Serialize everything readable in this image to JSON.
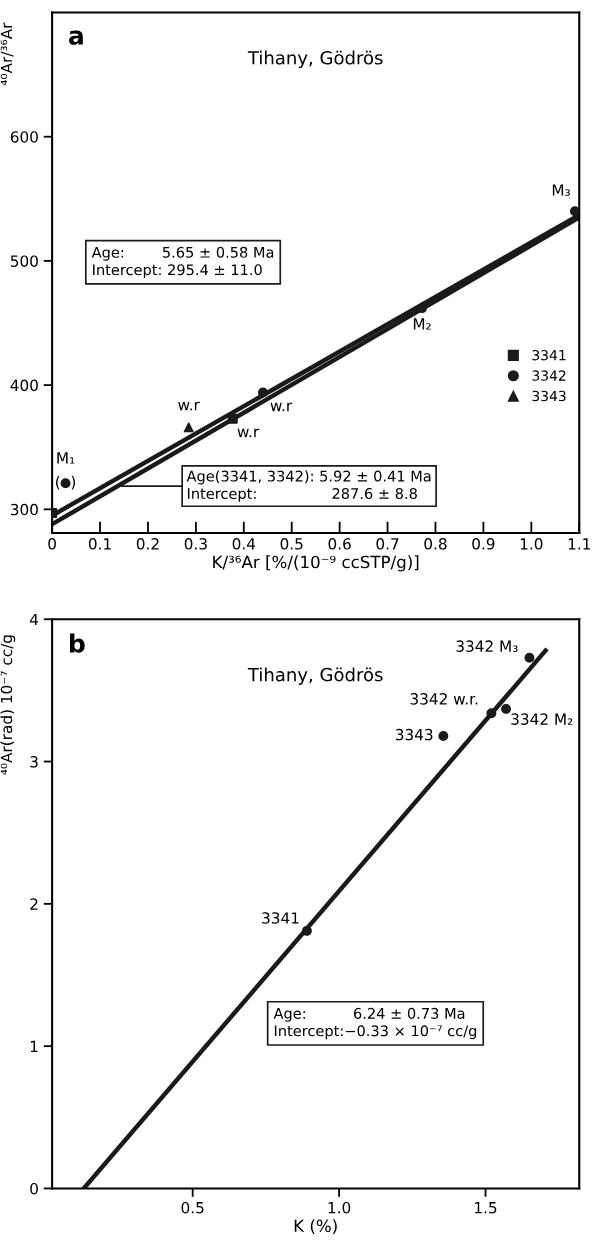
{
  "chart_data": [
    {
      "type": "scatter",
      "title": "Tihany, Gödrös",
      "xlabel": "K/³⁶Ar [%/(10⁻⁹ ccSTP/g)]",
      "ylabel": "⁴⁰Ar/³⁶Ar",
      "xlim": [
        0,
        1.1
      ],
      "ylim": [
        281,
        700
      ],
      "xticks": [
        0,
        {
          "value": 0.1,
          "label": "0.1"
        },
        {
          "value": 0.2,
          "label": "0.2"
        },
        {
          "value": 0.3,
          "label": "0.3"
        },
        {
          "value": 0.4,
          "label": "0.4"
        },
        {
          "value": 0.5,
          "label": "0.5"
        },
        {
          "value": 0.6,
          "label": "0.6"
        },
        {
          "value": 0.7,
          "label": "0.7"
        },
        {
          "value": 0.8,
          "label": "0.8"
        },
        {
          "value": 0.9,
          "label": "0.9"
        },
        {
          "value": 1.0,
          "label": "1.0"
        },
        {
          "value": 1.1,
          "label": "1.1"
        }
      ],
      "yticks": [
        300,
        400,
        500,
        600
      ],
      "grid": false,
      "legend": "right",
      "series": [
        {
          "type": "line",
          "color": "#1a1a1a",
          "x": [
            0,
            1.1
          ],
          "values": [
            295,
            537
          ],
          "marker": "none"
        },
        {
          "type": "line",
          "color": "#1a1a1a",
          "x": [
            0,
            1.1
          ],
          "values": [
            288,
            535
          ],
          "marker": "none"
        },
        {
          "name": "3341",
          "color": "#1a1a1a",
          "marker": "square",
          "x": [
            0,
            0.377
          ],
          "values": [
            297,
            373
          ]
        },
        {
          "name": "3342",
          "color": "#1a1a1a",
          "marker": "circle",
          "x": [
            0.028,
            0.44,
            0.772,
            1.091
          ],
          "values": [
            321,
            394,
            462,
            540
          ]
        },
        {
          "name": "3343",
          "color": "#1a1a1a",
          "marker": "triangle",
          "x": [
            0.285
          ],
          "values": [
            366
          ]
        }
      ],
      "annotations": [
        "a",
        "Age:        5.65 ± 0.58 Ma\nIntercept: 295.4 ± 11.0",
        "Age(3341, 3342): 5.92 ± 0.41 Ma\nIntercept:                287.6 ± 8.8",
        {
          "text": "M₁",
          "x": 0.028,
          "y": 321
        },
        {
          "text": "(  )",
          "x": 0.028,
          "y": 321
        },
        {
          "text": "w.r",
          "x": 0.285,
          "y": 366
        },
        {
          "text": "w.r",
          "x": 0.377,
          "y": 373
        },
        {
          "text": "w.r",
          "x": 0.44,
          "y": 394
        },
        {
          "text": "M₂",
          "x": 0.772,
          "y": 462
        },
        {
          "text": "M₃",
          "x": 1.091,
          "y": 540
        }
      ]
    },
    {
      "type": "scatter",
      "title": "Tihany, Gödrös",
      "xlabel": "K (%)",
      "ylabel": "⁴⁰Ar(rad) 10⁻⁷ cc/g",
      "xlim": [
        0.02,
        1.82
      ],
      "ylim": [
        0,
        4
      ],
      "xticks": [
        0.5,
        {
          "value": 1.0,
          "label": "1.0"
        },
        1.5
      ],
      "yticks": [
        0,
        1,
        2,
        3,
        4
      ],
      "grid": false,
      "series": [
        {
          "type": "line",
          "color": "#1a1a1a",
          "x": [
            0.128,
            1.705
          ],
          "values": [
            0,
            3.78
          ],
          "marker": "none"
        },
        {
          "color": "#1a1a1a",
          "marker": "circle",
          "x": [
            0.89,
            1.356,
            1.52,
            1.57,
            1.65
          ],
          "values": [
            1.81,
            3.18,
            3.34,
            3.37,
            3.73
          ]
        }
      ],
      "annotations": [
        "b",
        "Age:          6.24 ± 0.73 Ma\nIntercept:−0.33 × 10⁻⁷ cc/g",
        {
          "text": "3341",
          "x": 0.89,
          "y": 1.81
        },
        {
          "text": "3343",
          "x": 1.356,
          "y": 3.18
        },
        {
          "text": "3342 w.r.",
          "x": 1.52,
          "y": 3.34
        },
        {
          "text": "3342 M₂",
          "x": 1.57,
          "y": 3.37
        },
        {
          "text": "3342 M₃",
          "x": 1.65,
          "y": 3.73
        }
      ]
    }
  ]
}
